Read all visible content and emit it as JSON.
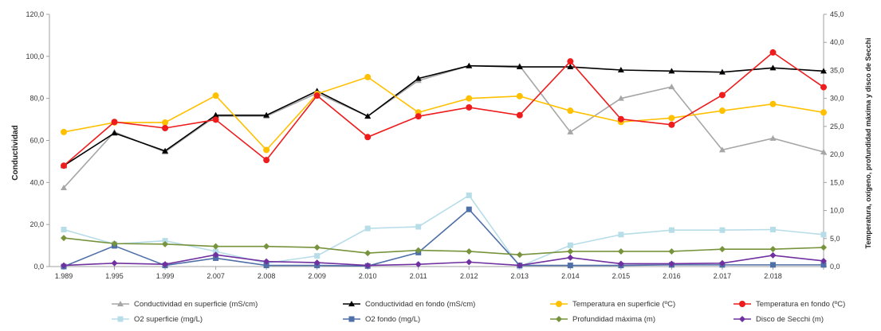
{
  "chart_data": {
    "type": "line",
    "categories": [
      "1.989",
      "1.995",
      "1.999",
      "2.007",
      "2.008",
      "2.009",
      "2.010",
      "2.011",
      "2.012",
      "2.013",
      "2.014",
      "2.015",
      "2.016",
      "2.017",
      "2.018",
      ""
    ],
    "ylabel": "Conductividad",
    "y2label": "Temperatura, oxígeno, profundidad máxima y disco de Secchi",
    "ylim": [
      0,
      120
    ],
    "y2lim": [
      0,
      45
    ],
    "yticks": [
      "0,0",
      "20,0",
      "40,0",
      "60,0",
      "80,0",
      "100,0",
      "120,0"
    ],
    "y2ticks": [
      "0,0",
      "5,0",
      "10,0",
      "15,0",
      "20,0",
      "25,0",
      "30,0",
      "35,0",
      "40,0",
      "45,0"
    ],
    "grid": false,
    "legend_position": "bottom",
    "series": [
      {
        "name": "Conductividad en superficie (mS/cm)",
        "axis": "left",
        "color": "#a6a6a6",
        "marker": "triangle",
        "values": [
          37.5,
          64,
          54.5,
          71.5,
          71.5,
          82.5,
          71.5,
          88.5,
          95.5,
          95.5,
          64,
          80,
          85.5,
          55.5,
          61,
          54.5
        ]
      },
      {
        "name": "Conductividad en fondo (mS/cm)",
        "axis": "left",
        "color": "#000000",
        "marker": "triangle",
        "values": [
          48,
          63.5,
          55,
          72,
          72,
          83.5,
          71.5,
          89.5,
          95.5,
          95,
          95,
          93.5,
          93,
          92.5,
          94.5,
          93
        ]
      },
      {
        "name": "Temperatura en superficie (ºC)",
        "axis": "right",
        "color": "#ffc000",
        "marker": "circle",
        "values": [
          24,
          25.7,
          25.7,
          30.5,
          20.8,
          30.8,
          33.8,
          27.5,
          30,
          30.4,
          27.8,
          25.8,
          26.5,
          27.8,
          29,
          27.5
        ]
      },
      {
        "name": "Temperatura en fondo (ºC)",
        "axis": "right",
        "color": "#ee1c1c",
        "marker": "circle",
        "values": [
          18,
          25.8,
          24.7,
          26.2,
          19,
          30.5,
          23.1,
          26.8,
          28.4,
          27,
          36.6,
          26.3,
          25.3,
          30.6,
          38.2,
          32
        ]
      },
      {
        "name": "O2 superficie (mg/L)",
        "axis": "right",
        "color": "#b7dde8",
        "marker": "square",
        "values": [
          6.6,
          4,
          4.6,
          2.7,
          0.6,
          1.9,
          6.8,
          7.1,
          12.7,
          0,
          3.8,
          5.7,
          6.5,
          6.5,
          6.6,
          5.7
        ]
      },
      {
        "name": "O2 fondo (mg/L)",
        "axis": "right",
        "color": "#4f6fa8",
        "marker": "square",
        "values": [
          0,
          3.7,
          0.2,
          1.5,
          0.2,
          0.2,
          0.1,
          2.5,
          10.2,
          0.2,
          0.2,
          0.2,
          0.3,
          0.3,
          0.3,
          0.3
        ]
      },
      {
        "name": "Profundidad máxima (m)",
        "axis": "right",
        "color": "#77933c",
        "marker": "diamond",
        "values": [
          5.1,
          4.1,
          4,
          3.6,
          3.6,
          3.4,
          2.4,
          2.9,
          2.7,
          2.1,
          2.7,
          2.7,
          2.7,
          3.1,
          3.1,
          3.4
        ]
      },
      {
        "name": "Disco de Secchi (m)",
        "axis": "right",
        "color": "#7030a0",
        "marker": "diamond",
        "values": [
          0.2,
          0.6,
          0.4,
          2.1,
          0.9,
          0.7,
          0.2,
          0.4,
          0.8,
          0.2,
          1.6,
          0.5,
          0.5,
          0.6,
          2,
          1
        ]
      }
    ]
  }
}
